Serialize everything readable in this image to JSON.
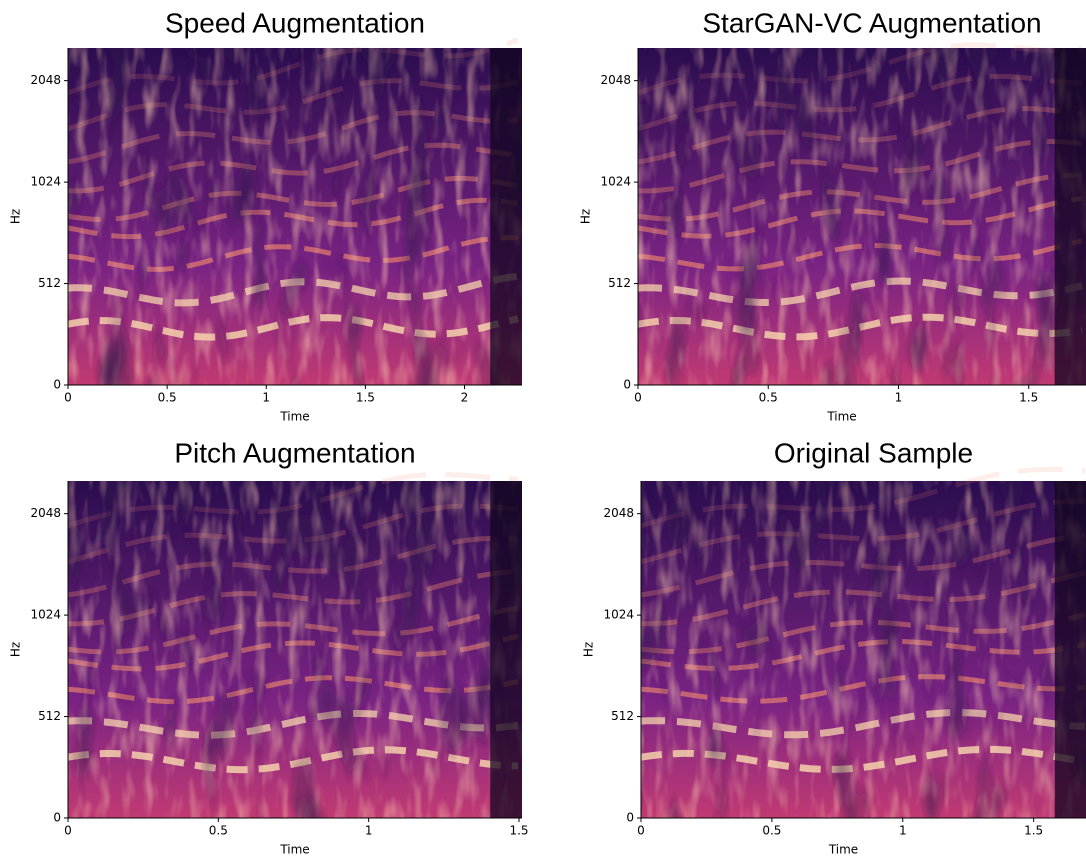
{
  "chart_data": [
    {
      "type": "spectrogram",
      "title": "Speed  Augmentation",
      "xlabel": "Time",
      "ylabel": "Hz",
      "xlim": [
        0,
        2.29
      ],
      "xticks": [
        0,
        0.5,
        1,
        1.5,
        2
      ],
      "ylim": [
        0,
        2560
      ],
      "yticks": [
        0,
        512,
        1024,
        2048
      ],
      "yscale": "symlog",
      "linthresh": 512
    },
    {
      "type": "spectrogram",
      "title": "StarGAN-VC Augmentation",
      "xlabel": "Time",
      "ylabel": "Hz",
      "xlim": [
        0,
        1.72
      ],
      "xticks": [
        0,
        0.5,
        1,
        1.5
      ],
      "ylim": [
        0,
        2560
      ],
      "yticks": [
        0,
        512,
        1024,
        2048
      ],
      "yscale": "symlog",
      "linthresh": 512
    },
    {
      "type": "spectrogram",
      "title": "Pitch  Augmentation",
      "xlabel": "Time",
      "ylabel": "Hz",
      "xlim": [
        0,
        1.51
      ],
      "xticks": [
        0,
        0.5,
        1,
        1.5
      ],
      "ylim": [
        0,
        2560
      ],
      "yticks": [
        0,
        512,
        1024,
        2048
      ],
      "yscale": "symlog",
      "linthresh": 512
    },
    {
      "type": "spectrogram",
      "title": "Original Sample",
      "xlabel": "Time",
      "ylabel": "Hz",
      "xlim": [
        0,
        1.7
      ],
      "xticks": [
        0,
        0.5,
        1,
        1.5
      ],
      "ylim": [
        0,
        2560
      ],
      "yticks": [
        0,
        512,
        1024,
        2048
      ],
      "yscale": "symlog",
      "linthresh": 512
    }
  ]
}
